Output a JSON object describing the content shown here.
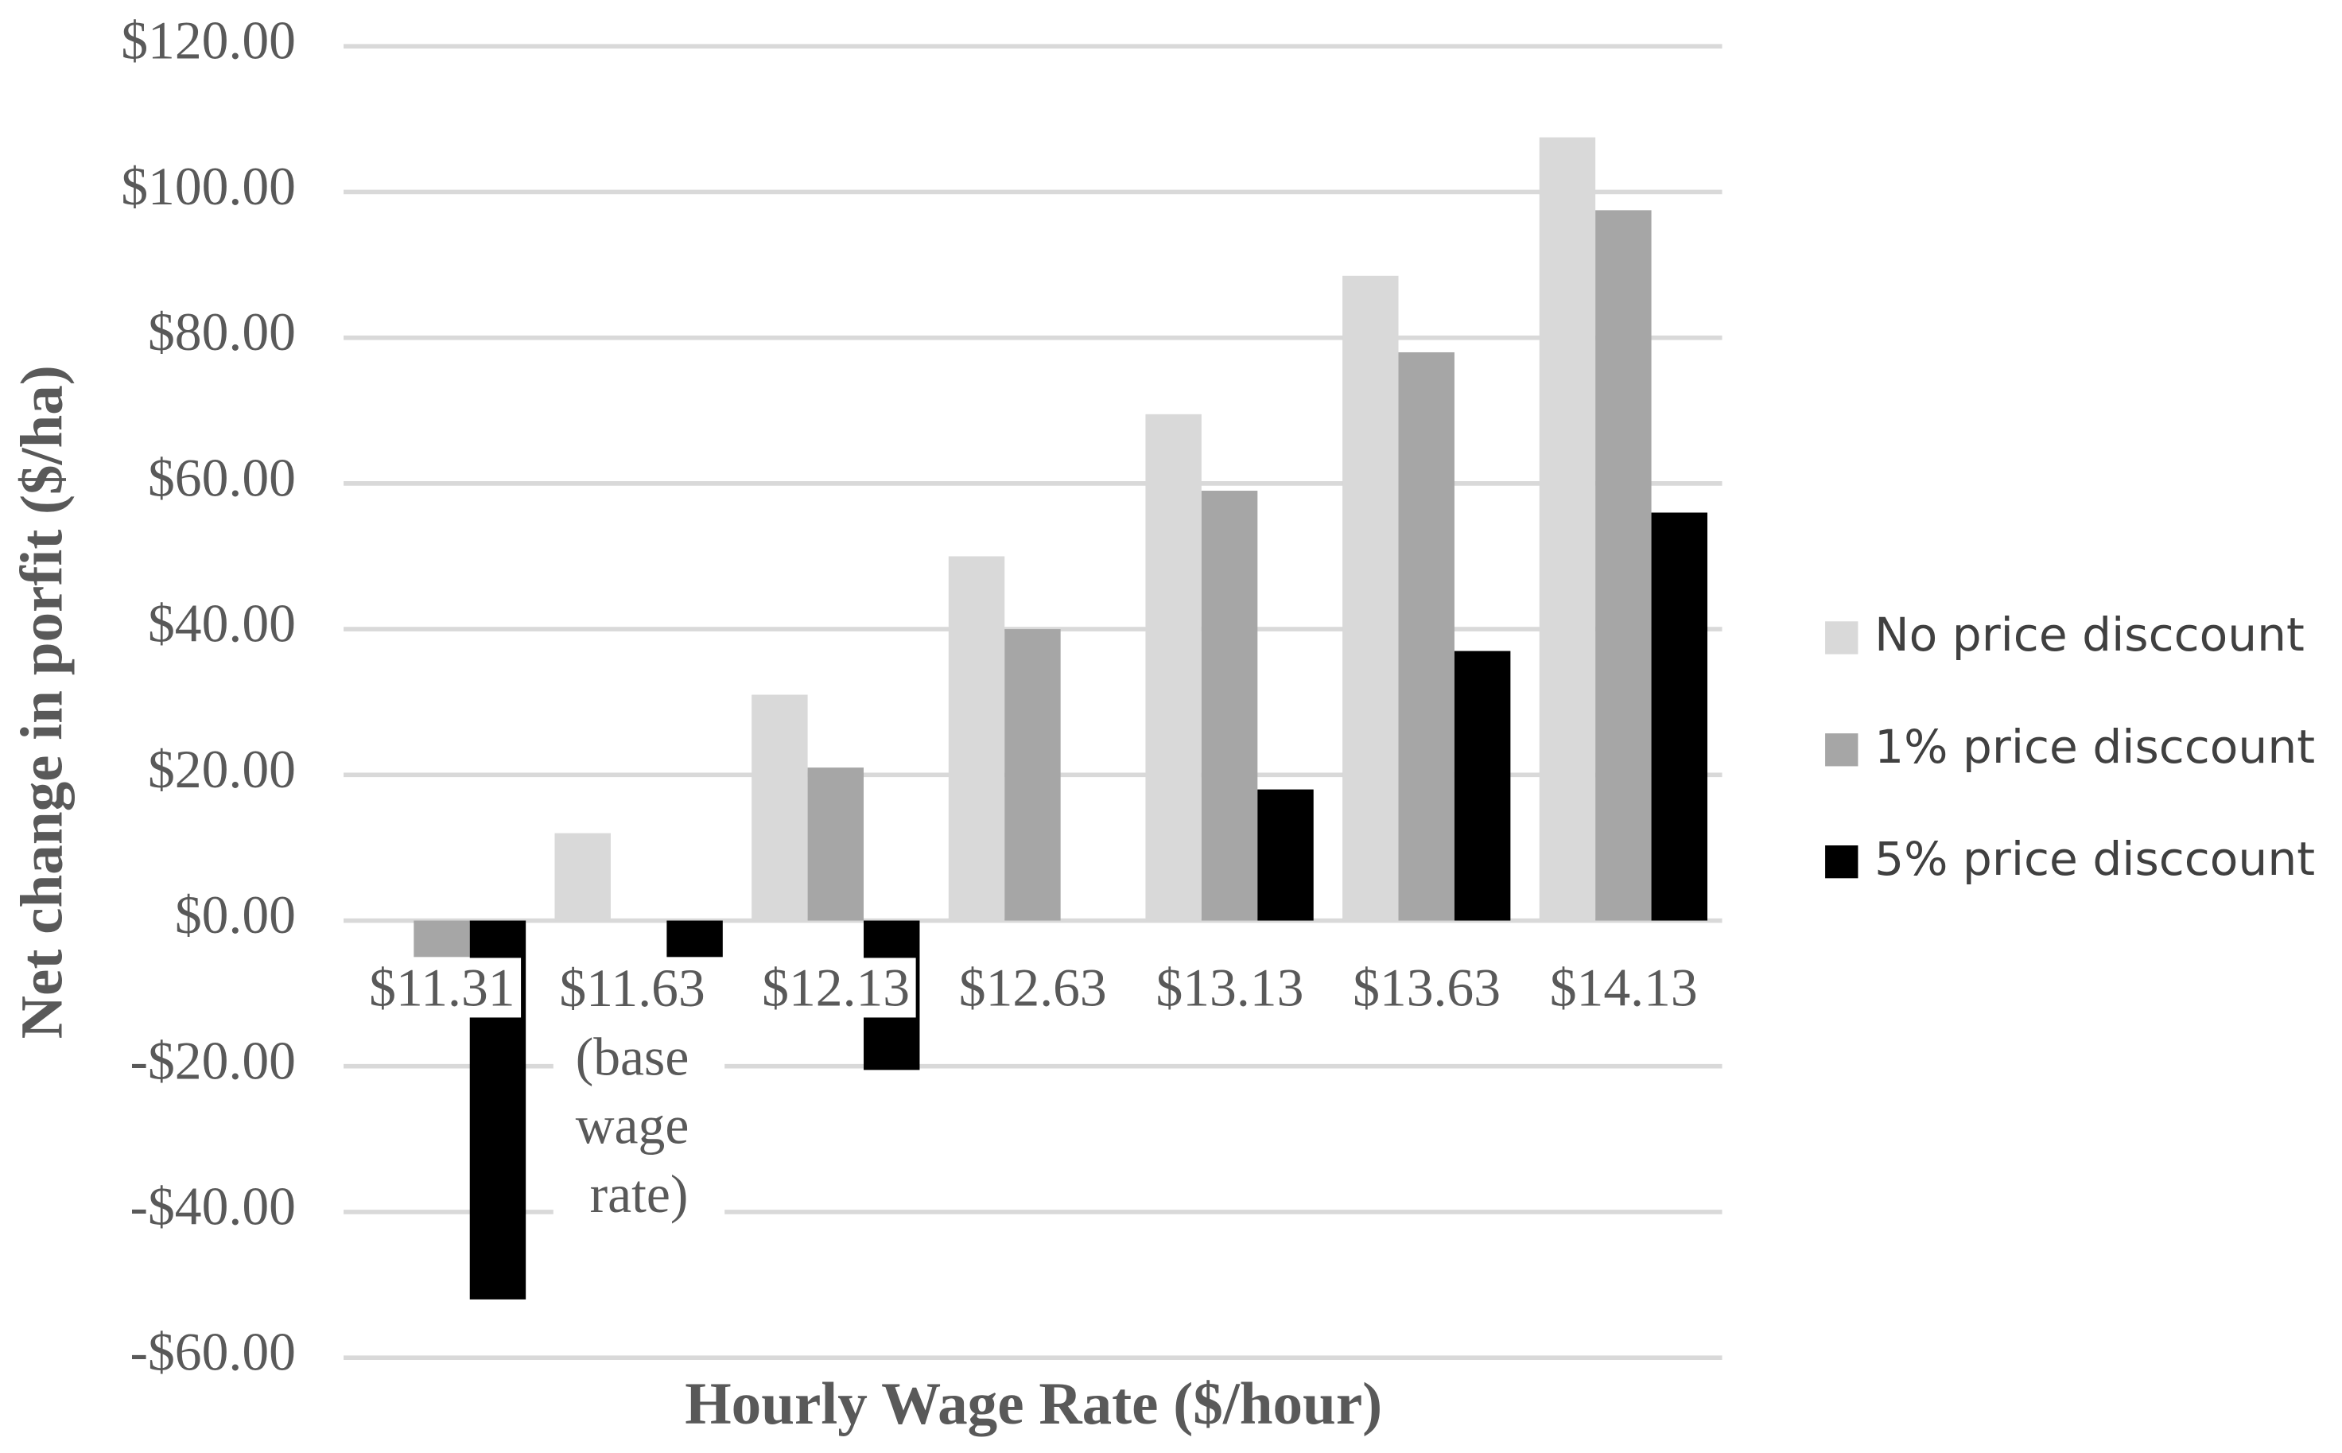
{
  "chart_data": {
    "type": "bar",
    "xlabel": "Hourly Wage Rate ($/hour)",
    "ylabel": "Net change in porfit ($/ha)",
    "categories": [
      "$11.31",
      "$11.63 (base wage rate)",
      "$12.13",
      "$12.63",
      "$13.13",
      "$13.63",
      "$14.13"
    ],
    "series": [
      {
        "name": "No price disccount",
        "color": "#d9d9d9",
        "values": [
          0,
          12,
          31,
          50,
          69.5,
          88.5,
          107.5
        ]
      },
      {
        "name": "1% price disccount",
        "color": "#a6a6a6",
        "values": [
          -5,
          0,
          21,
          40,
          59,
          78,
          97.5
        ]
      },
      {
        "name": "5% price disccount",
        "color": "#000000",
        "values": [
          -52,
          -5,
          -20.5,
          0,
          18,
          37,
          56
        ]
      }
    ],
    "ylim": [
      -60,
      120
    ],
    "yticks": [
      {
        "value": -60,
        "label": "-$60.00"
      },
      {
        "value": -40,
        "label": "-$40.00"
      },
      {
        "value": -20,
        "label": "-$20.00"
      },
      {
        "value": 0,
        "label": "$0.00"
      },
      {
        "value": 20,
        "label": "$20.00"
      },
      {
        "value": 40,
        "label": "$40.00"
      },
      {
        "value": 60,
        "label": "$60.00"
      },
      {
        "value": 80,
        "label": "$80.00"
      },
      {
        "value": 100,
        "label": "$100.00"
      },
      {
        "value": 120,
        "label": "$120.00"
      }
    ],
    "grid": true,
    "legend": "right"
  }
}
